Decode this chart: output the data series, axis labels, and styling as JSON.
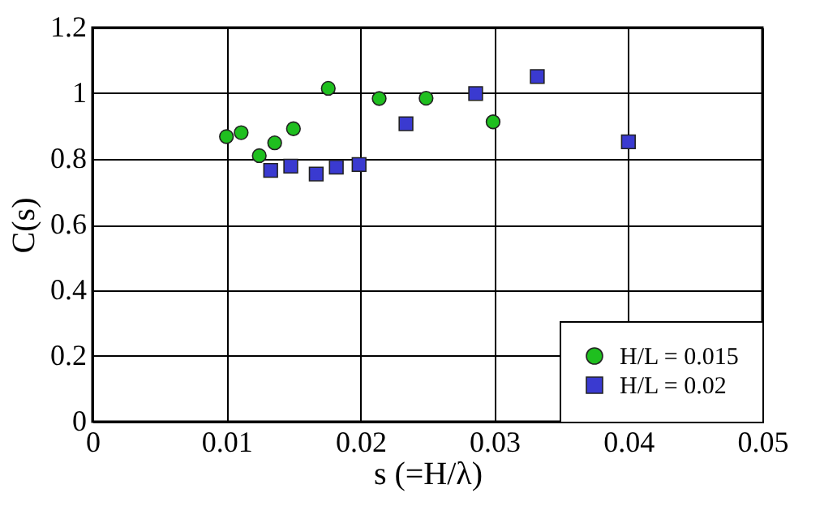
{
  "chart_data": {
    "type": "scatter",
    "xlabel": "s (=H/λ)",
    "ylabel": "C(s)",
    "xlim": [
      0,
      0.05
    ],
    "xticks": [
      0,
      0.01,
      0.02,
      0.03,
      0.04,
      0.05
    ],
    "ylim": [
      0,
      1.2
    ],
    "yticks": [
      0,
      0.2,
      0.4,
      0.6,
      0.8,
      1,
      1.2
    ],
    "grid": true,
    "legend": "bottom right",
    "series": [
      {
        "name": "H/L = 0.015",
        "color": "#1fbf1f",
        "marker": "circle",
        "x": [
          0.01,
          0.0111,
          0.01245,
          0.0136,
          0.015,
          0.0176,
          0.0214,
          0.0249,
          0.0299
        ],
        "values": [
          0.868,
          0.88,
          0.81,
          0.849,
          0.892,
          1.015,
          0.984,
          0.985,
          0.913
        ]
      },
      {
        "name": "H/L = 0.02",
        "color": "#3a3ad0",
        "marker": "square",
        "x": [
          0.0133,
          0.0148,
          0.0167,
          0.0182,
          0.0199,
          0.0234,
          0.0286,
          0.0332,
          0.04
        ],
        "values": [
          0.765,
          0.778,
          0.754,
          0.775,
          0.783,
          0.907,
          0.999,
          1.051,
          0.852
        ]
      }
    ]
  }
}
